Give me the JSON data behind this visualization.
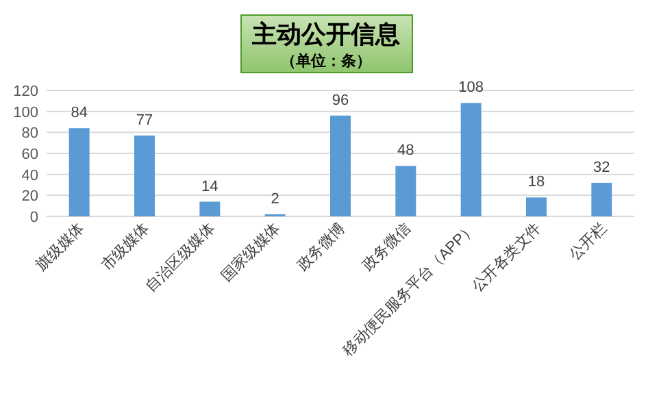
{
  "chart_data": {
    "type": "bar",
    "title": "主动公开信息",
    "subtitle": "（单位：条）",
    "categories": [
      "旗级媒体",
      "市级媒体",
      "自治区级媒体",
      "国家级媒体",
      "政务微博",
      "政务微信",
      "移动便民服务平台（APP）",
      "公开各类文件",
      "公开栏"
    ],
    "values": [
      84,
      77,
      14,
      2,
      96,
      48,
      108,
      18,
      32
    ],
    "color": "#5b9bd5",
    "ylim": [
      0,
      120
    ],
    "yticks": [
      0,
      20,
      40,
      60,
      80,
      100,
      120
    ],
    "grid": "y",
    "data_labels": true
  }
}
